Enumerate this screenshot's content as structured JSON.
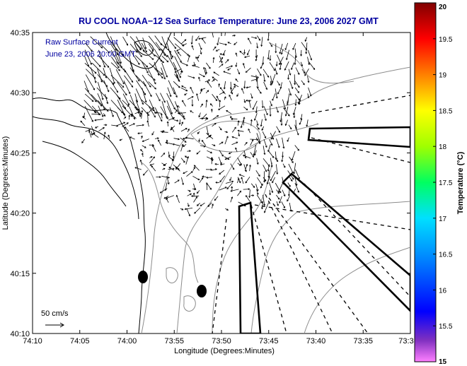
{
  "chart_data": {
    "type": "quiver",
    "title": "RU COOL  NOAA−12  Sea Surface Temperature:  June 23, 2006 2027 GMT",
    "xlabel": "Longitude (Degrees:Minutes)",
    "ylabel": "Latitude (Degrees:Minutes)",
    "x_ticks": [
      "74:10",
      "74:05",
      "74:00",
      "73:55",
      "73:50",
      "73:45",
      "73:40",
      "73:35",
      "73:3"
    ],
    "y_ticks": [
      "40:35",
      "40:30",
      "40:25",
      "40:20",
      "40:15",
      "40:10"
    ],
    "xlim_minutes_west": [
      70,
      30
    ],
    "ylim_minutes_north": [
      10,
      35
    ],
    "annotation_lines": [
      "Raw Surface Current",
      "June 23, 2006 20:00 GMT"
    ],
    "scale_label": "50 cm/s",
    "colorbar": {
      "label": "Temperature (°C)",
      "ticks": [
        "20",
        "19.5",
        "19",
        "18.5",
        "18",
        "17.5",
        "17",
        "16.5",
        "16",
        "15.5",
        "15"
      ],
      "range": [
        15,
        20
      ]
    },
    "text_color": "#0000a0"
  }
}
